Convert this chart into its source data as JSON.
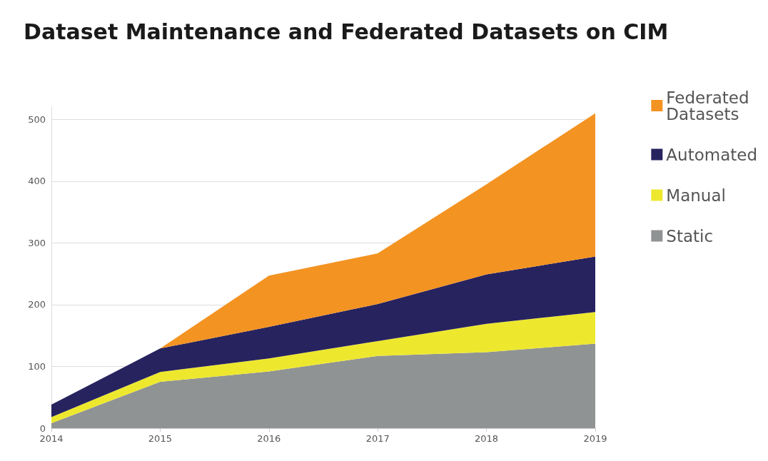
{
  "chart_data": {
    "type": "area",
    "title": "Dataset Maintenance and Federated Datasets on CIM",
    "categories": [
      "2014",
      "2015",
      "2016",
      "2017",
      "2018",
      "2019"
    ],
    "stacked": true,
    "series": [
      {
        "name": "Static",
        "color": "#909394",
        "values": [
          8,
          75,
          92,
          117,
          123,
          137
        ]
      },
      {
        "name": "Manual",
        "color": "#ede82e",
        "values": [
          10,
          16,
          21,
          24,
          46,
          51
        ]
      },
      {
        "name": "Automated",
        "color": "#27235f",
        "values": [
          20,
          38,
          51,
          60,
          80,
          90
        ]
      },
      {
        "name": "Federated Datasets",
        "color": "#f39322",
        "values": [
          0,
          0,
          83,
          82,
          146,
          232
        ]
      }
    ],
    "ylim": [
      0,
      520
    ],
    "yticks": [
      0,
      100,
      200,
      300,
      400,
      500
    ],
    "grid": "y",
    "legend": "right"
  }
}
